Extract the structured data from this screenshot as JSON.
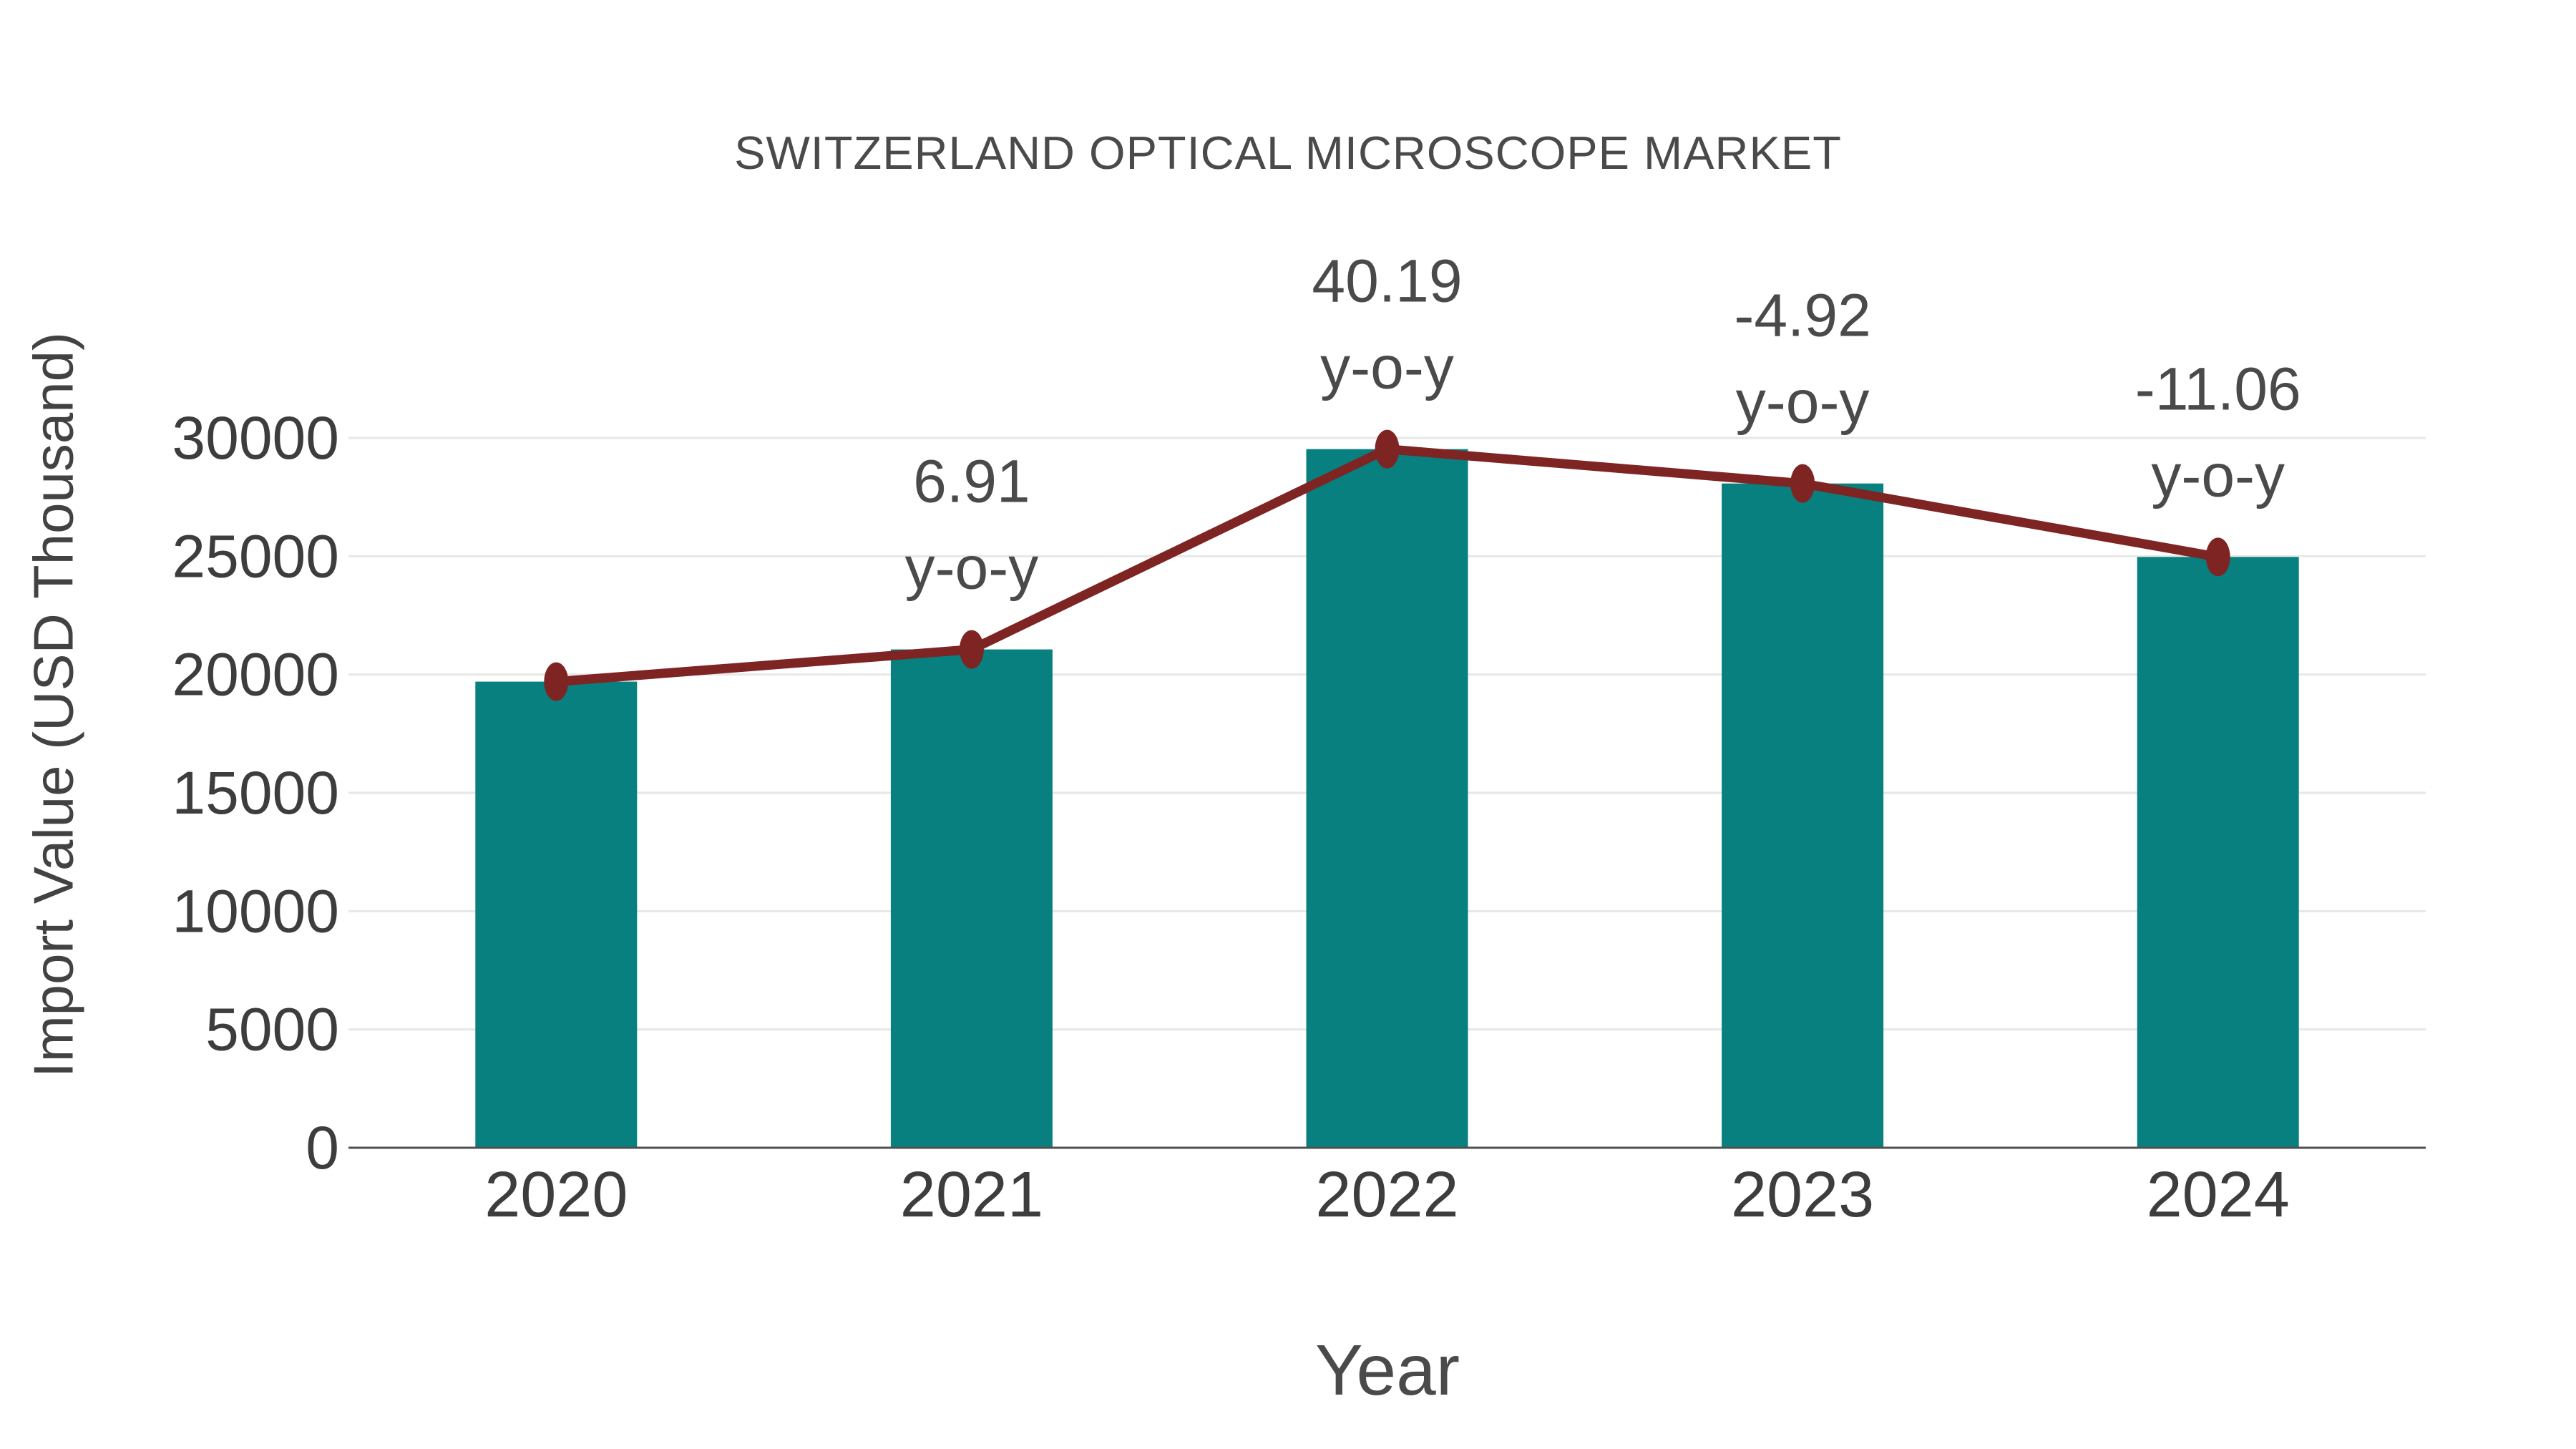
{
  "chart_data": {
    "type": "bar",
    "title": "SWITZERLAND OPTICAL MICROSCOPE MARKET",
    "xlabel": "Year",
    "ylabel": "Import Value (USD Thousand)",
    "categories": [
      "2020",
      "2021",
      "2022",
      "2023",
      "2024"
    ],
    "series": [
      {
        "name": "Import Value (USD Thousand)",
        "type": "bar",
        "color": "#088080",
        "values": [
          19700,
          21061,
          29527,
          28074,
          24969
        ]
      },
      {
        "name": "y-o-y trend line",
        "type": "line",
        "color": "#7e2423",
        "values": [
          19700,
          21061,
          29527,
          28074,
          24969
        ]
      }
    ],
    "annotations": [
      {
        "category": "2021",
        "value_label": "6.91",
        "suffix": "y-o-y"
      },
      {
        "category": "2022",
        "value_label": "40.19",
        "suffix": "y-o-y"
      },
      {
        "category": "2023",
        "value_label": "-4.92",
        "suffix": "y-o-y"
      },
      {
        "category": "2024",
        "value_label": "-11.06",
        "suffix": "y-o-y"
      }
    ],
    "ylim": [
      0,
      30000
    ],
    "yticks": [
      0,
      5000,
      10000,
      15000,
      20000,
      25000,
      30000
    ],
    "grid": true,
    "legend": false,
    "colors": {
      "bar": "#088080",
      "line": "#7e2423",
      "marker": "#7e2423",
      "tick_text": "#3d3d3d",
      "annotation_text": "#4a4a4a",
      "gridline": "#e7e7e7",
      "axis_line": "#4f4f4f",
      "background": "#ffffff"
    }
  }
}
